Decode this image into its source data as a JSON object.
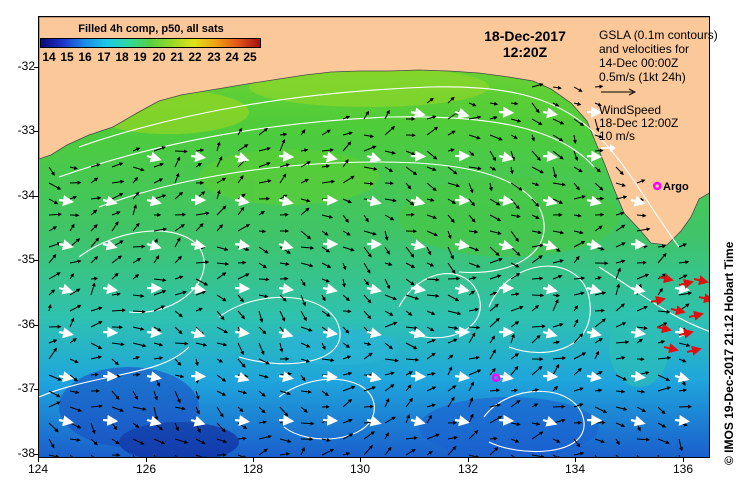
{
  "title": "Filled 4h comp, p50, all sats",
  "colorbar": {
    "labels": [
      "14",
      "15",
      "16",
      "17",
      "18",
      "19",
      "20",
      "21",
      "22",
      "23",
      "24",
      "25"
    ],
    "min": 13.5,
    "max": 25.5
  },
  "date_line1": "18-Dec-2017",
  "date_line2": "12:20Z",
  "gsla_lines": [
    "GSLA (0.1m contours)",
    "and velocities for",
    "14-Dec 00:00Z",
    "0.5m/s (1kt 24h)"
  ],
  "wind_lines": [
    "WindSpeed",
    "18-Dec 12:00Z",
    "10 m/s"
  ],
  "argo_label": "Argo",
  "credit": "© IMOS 19-Dec-2017 21:12 Hobart Time",
  "axes": {
    "x_ticks": [
      "124",
      "126",
      "128",
      "130",
      "132",
      "134",
      "136"
    ],
    "x_values": [
      124,
      126,
      128,
      130,
      132,
      134,
      136
    ],
    "xlim": [
      124,
      136.5
    ],
    "y_ticks": [
      "-32",
      "-33",
      "-34",
      "-35",
      "-36",
      "-37",
      "-38"
    ],
    "y_values": [
      -32,
      -33,
      -34,
      -35,
      -36,
      -37,
      -38
    ],
    "ylim": [
      -38.1,
      -31.3
    ]
  },
  "argo_floats": [
    {
      "lon": 135.5,
      "lat": -33.9
    },
    {
      "lon": 132.5,
      "lat": -36.85
    }
  ],
  "colors": {
    "land": "#fbc89a",
    "argo": "#ff00ff",
    "contour": "#ffffff",
    "velocity_arrow": "#000000",
    "wind_arrow": "#ffffff",
    "strong_current": "#e01010"
  }
}
